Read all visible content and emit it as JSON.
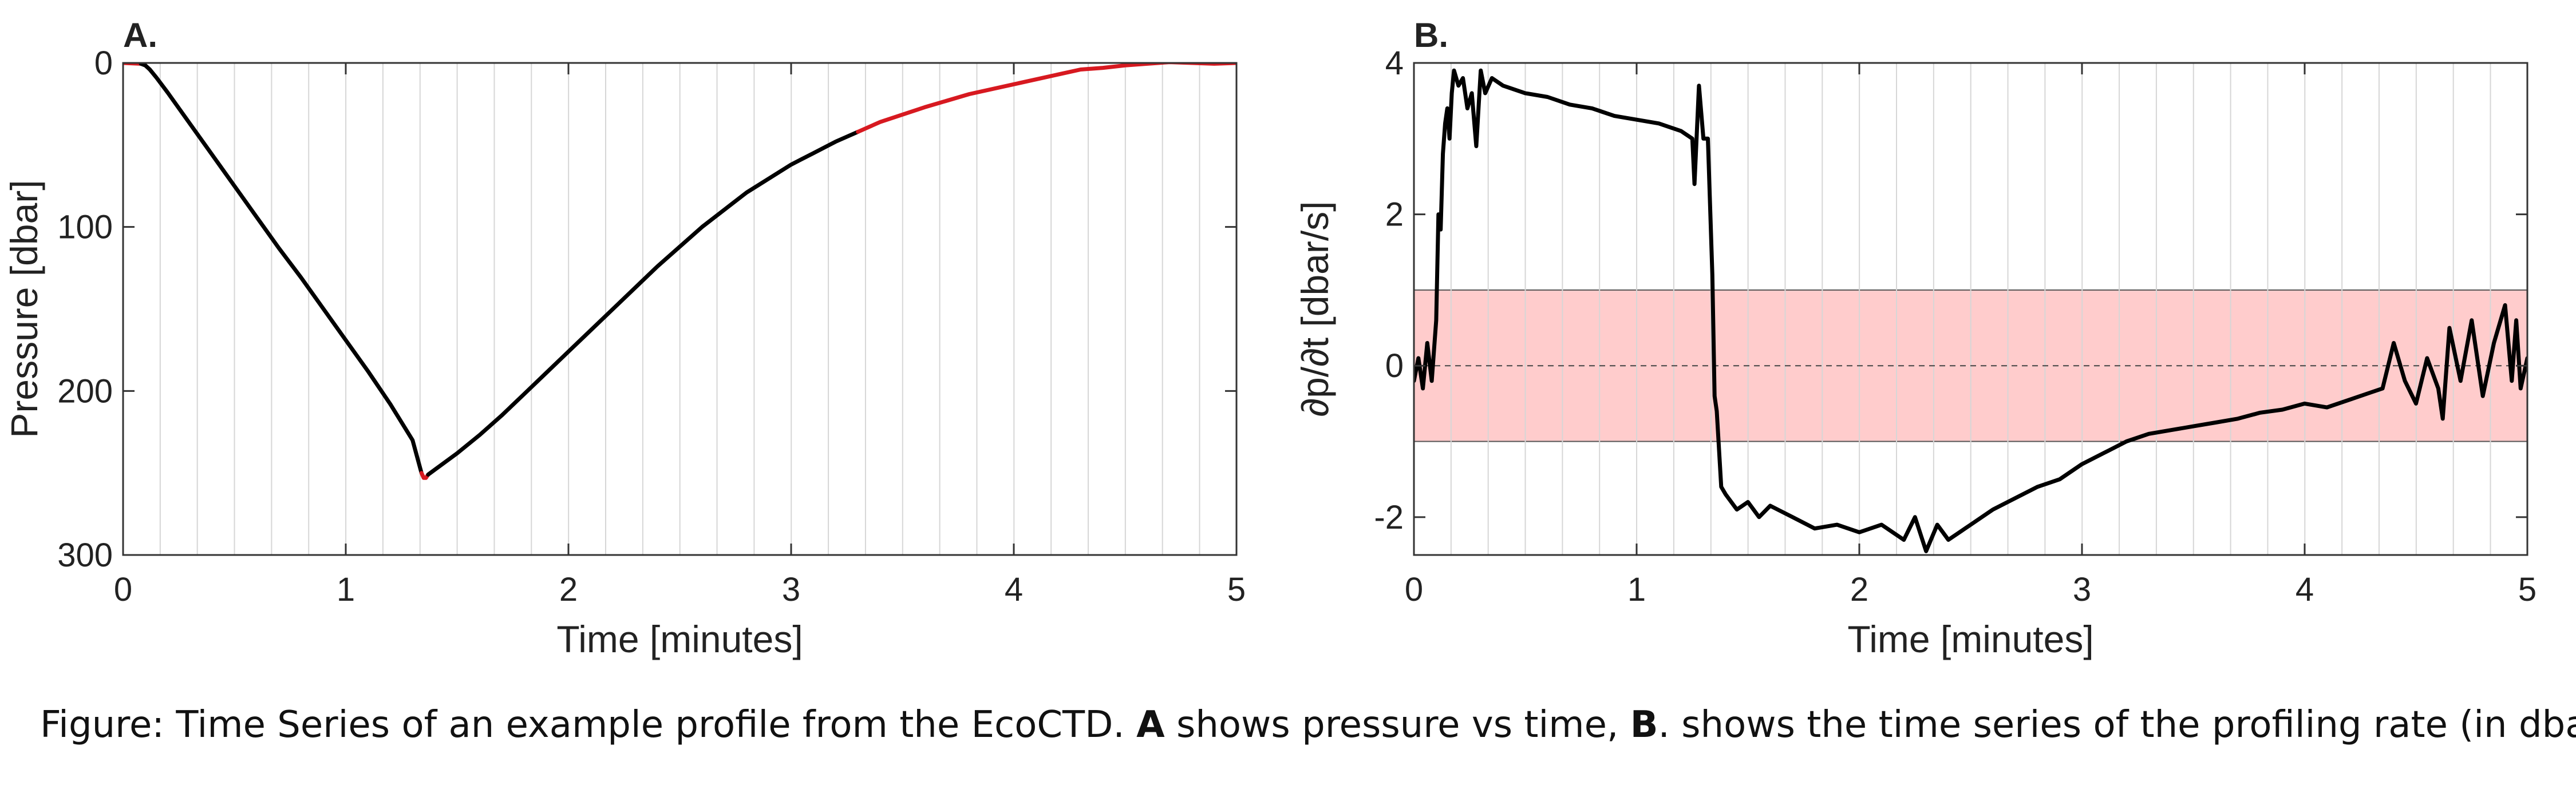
{
  "chart_data": [
    {
      "type": "line",
      "panel_label": "A.",
      "xlabel": "Time [minutes]",
      "ylabel": "Pressure [dbar]",
      "xlim": [
        0,
        5
      ],
      "ylim": [
        0,
        300
      ],
      "y_reversed": true,
      "xticks": [
        0,
        1,
        2,
        3,
        4,
        5
      ],
      "yticks": [
        0,
        100,
        200,
        300
      ],
      "grid": "vertical",
      "x_minor_grid_step": 0.1667,
      "series": [
        {
          "color": "#d71920",
          "x": [
            0,
            0.08
          ],
          "y": [
            0,
            0.5
          ]
        },
        {
          "color": "#000000",
          "x": [
            0.08,
            0.1,
            0.12,
            0.15,
            0.2,
            0.3,
            0.4,
            0.5,
            0.6,
            0.7,
            0.8,
            0.9,
            1.0,
            1.1,
            1.2,
            1.3,
            1.34
          ],
          "y": [
            0.5,
            1.5,
            4,
            9,
            18,
            37,
            56,
            75,
            94,
            113,
            131,
            150,
            169,
            188,
            208,
            230,
            250
          ]
        },
        {
          "color": "#d71920",
          "x": [
            1.34,
            1.35,
            1.36,
            1.37
          ],
          "y": [
            250,
            253,
            253,
            251
          ]
        },
        {
          "color": "#000000",
          "x": [
            1.37,
            1.5,
            1.6,
            1.7,
            1.8,
            1.9,
            2.0,
            2.2,
            2.4,
            2.6,
            2.8,
            3.0,
            3.1,
            3.2,
            3.3
          ],
          "y": [
            251,
            238,
            227,
            215,
            202,
            189,
            176,
            150,
            124,
            100,
            79,
            62,
            55,
            48,
            42
          ]
        },
        {
          "color": "#d71920",
          "x": [
            3.3,
            3.4,
            3.6,
            3.8,
            4.0,
            4.2,
            4.3,
            4.4,
            4.5,
            4.6,
            4.7,
            4.8,
            4.9,
            5.0
          ],
          "y": [
            42,
            36,
            27,
            19,
            13,
            7,
            4,
            3,
            1.5,
            0.5,
            -0.5,
            0,
            0.5,
            0
          ]
        }
      ]
    },
    {
      "type": "line",
      "panel_label": "B.",
      "xlabel": "Time [minutes]",
      "ylabel": "∂p/∂t [dbar/s]",
      "xlim": [
        0,
        5
      ],
      "ylim": [
        -2.5,
        4
      ],
      "xticks": [
        0,
        1,
        2,
        3,
        4,
        5
      ],
      "yticks": [
        -2,
        0,
        2,
        4
      ],
      "grid": "vertical",
      "x_minor_grid_step": 0.1667,
      "band": {
        "ymin": -1,
        "ymax": 1,
        "fill": "#ffcccc"
      },
      "zero_line": "dashed",
      "series": [
        {
          "color": "#000000",
          "x": [
            0,
            0.02,
            0.04,
            0.06,
            0.08,
            0.1,
            0.11,
            0.12,
            0.13,
            0.14,
            0.15,
            0.16,
            0.17,
            0.18,
            0.2,
            0.22,
            0.24,
            0.26,
            0.28,
            0.3,
            0.32,
            0.35,
            0.4,
            0.5,
            0.6,
            0.7,
            0.8,
            0.9,
            1.0,
            1.1,
            1.2,
            1.25,
            1.26,
            1.28,
            1.3,
            1.32,
            1.34,
            1.35,
            1.36,
            1.38,
            1.4,
            1.45,
            1.5,
            1.55,
            1.6,
            1.7,
            1.8,
            1.9,
            2.0,
            2.1,
            2.2,
            2.25,
            2.3,
            2.35,
            2.4,
            2.5,
            2.6,
            2.7,
            2.8,
            2.9,
            3.0,
            3.1,
            3.2,
            3.3,
            3.4,
            3.5,
            3.6,
            3.7,
            3.8,
            3.9,
            4.0,
            4.1,
            4.2,
            4.3,
            4.35,
            4.4,
            4.45,
            4.5,
            4.55,
            4.6,
            4.62,
            4.65,
            4.7,
            4.75,
            4.8,
            4.85,
            4.9,
            4.93,
            4.95,
            4.97,
            5.0
          ],
          "y": [
            -0.2,
            0.1,
            -0.3,
            0.3,
            -0.2,
            0.6,
            2.0,
            1.8,
            2.8,
            3.2,
            3.4,
            3.0,
            3.6,
            3.9,
            3.7,
            3.8,
            3.4,
            3.6,
            2.9,
            3.9,
            3.6,
            3.8,
            3.7,
            3.6,
            3.55,
            3.45,
            3.4,
            3.3,
            3.25,
            3.2,
            3.1,
            3.0,
            2.4,
            3.7,
            3.0,
            3.0,
            1.2,
            -0.4,
            -0.6,
            -1.6,
            -1.7,
            -1.9,
            -1.8,
            -2.0,
            -1.85,
            -2.0,
            -2.15,
            -2.1,
            -2.2,
            -2.1,
            -2.3,
            -2.0,
            -2.45,
            -2.1,
            -2.3,
            -2.1,
            -1.9,
            -1.75,
            -1.6,
            -1.5,
            -1.3,
            -1.15,
            -1.0,
            -0.9,
            -0.85,
            -0.8,
            -0.75,
            -0.7,
            -0.62,
            -0.58,
            -0.5,
            -0.55,
            -0.45,
            -0.35,
            -0.3,
            0.3,
            -0.2,
            -0.5,
            0.1,
            -0.3,
            -0.7,
            0.5,
            -0.2,
            0.6,
            -0.4,
            0.3,
            0.8,
            -0.2,
            0.6,
            -0.3,
            0.1
          ]
        }
      ]
    }
  ],
  "caption": {
    "prefix": "Figure: Time Series of an example profile from the EcoCTD. ",
    "bold_a": "A",
    "middle": " shows pressure vs time, ",
    "bold_b": "B",
    "suffix": ". shows the time series of the profiling rate (in dbar/s.)"
  }
}
